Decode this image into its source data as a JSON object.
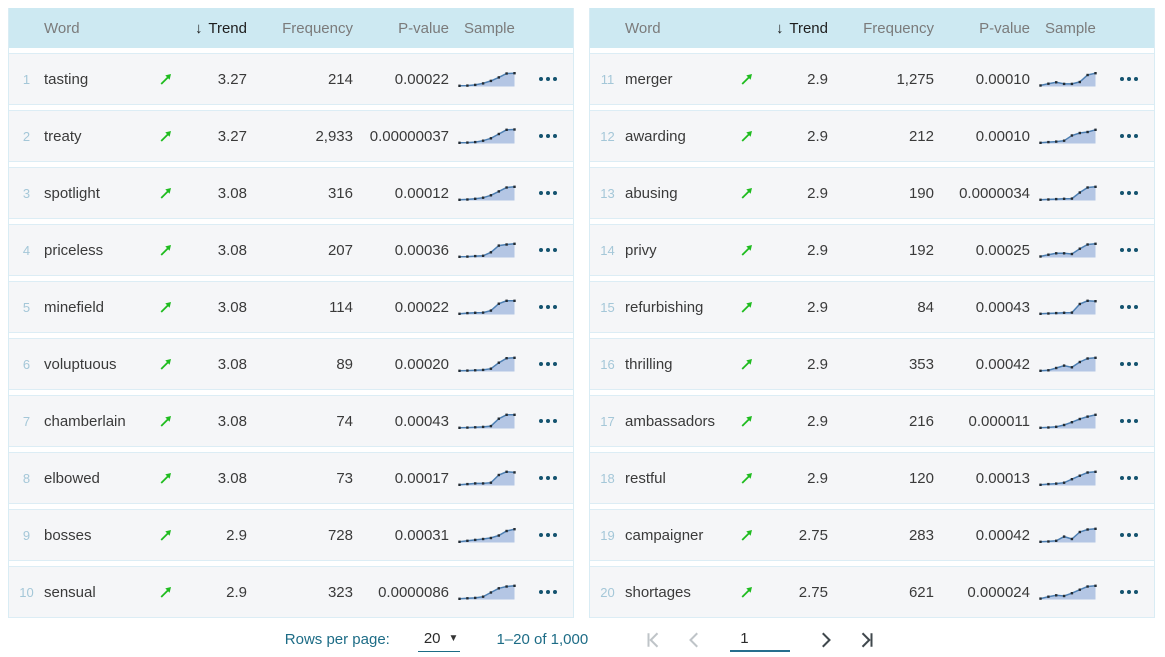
{
  "table": {
    "headers": {
      "word": "Word",
      "trend": "Trend",
      "frequency": "Frequency",
      "pvalue": "P-value",
      "sample": "Sample"
    },
    "sort": {
      "column": "Trend",
      "direction": "descending",
      "icon": "↓"
    },
    "left_rows": [
      {
        "num": "1",
        "word": "tasting",
        "trend": "3.27",
        "frequency": "214",
        "pvalue": "0.00022",
        "spark": [
          0.4,
          0.5,
          0.9,
          1.8,
          3.2,
          5.2,
          7.4,
          7.6
        ]
      },
      {
        "num": "2",
        "word": "treaty",
        "trend": "3.27",
        "frequency": "2,933",
        "pvalue": "0.00000037",
        "spark": [
          0.4,
          0.5,
          0.8,
          1.6,
          3.0,
          5.4,
          7.8,
          8.0
        ]
      },
      {
        "num": "3",
        "word": "spotlight",
        "trend": "3.08",
        "frequency": "316",
        "pvalue": "0.00012",
        "spark": [
          0.4,
          0.6,
          1.0,
          1.6,
          3.0,
          5.2,
          7.4,
          7.8
        ]
      },
      {
        "num": "4",
        "word": "priceless",
        "trend": "3.08",
        "frequency": "207",
        "pvalue": "0.00036",
        "spark": [
          0.4,
          0.5,
          0.8,
          1.0,
          3.0,
          6.8,
          7.4,
          7.8
        ]
      },
      {
        "num": "5",
        "word": "minefield",
        "trend": "3.08",
        "frequency": "114",
        "pvalue": "0.00022",
        "spark": [
          0.4,
          0.8,
          1.0,
          1.1,
          2.2,
          6.2,
          7.8,
          7.8
        ]
      },
      {
        "num": "6",
        "word": "voluptuous",
        "trend": "3.08",
        "frequency": "89",
        "pvalue": "0.00020",
        "spark": [
          0.4,
          0.5,
          0.7,
          0.9,
          1.6,
          5.0,
          7.6,
          7.8
        ]
      },
      {
        "num": "7",
        "word": "chamberlain",
        "trend": "3.08",
        "frequency": "74",
        "pvalue": "0.00043",
        "spark": [
          0.4,
          0.5,
          0.7,
          0.9,
          1.4,
          5.6,
          7.8,
          7.8
        ]
      },
      {
        "num": "8",
        "word": "elbowed",
        "trend": "3.08",
        "frequency": "73",
        "pvalue": "0.00017",
        "spark": [
          0.4,
          0.8,
          1.2,
          1.2,
          1.6,
          6.0,
          7.8,
          7.5
        ]
      },
      {
        "num": "9",
        "word": "bosses",
        "trend": "2.9",
        "frequency": "728",
        "pvalue": "0.00031",
        "spark": [
          0.4,
          1.0,
          1.5,
          2.0,
          2.6,
          4.0,
          6.6,
          7.6
        ]
      },
      {
        "num": "10",
        "word": "sensual",
        "trend": "2.9",
        "frequency": "323",
        "pvalue": "0.0000086",
        "spark": [
          0.4,
          0.7,
          0.9,
          1.6,
          4.0,
          6.4,
          7.4,
          7.8
        ]
      }
    ],
    "right_rows": [
      {
        "num": "11",
        "word": "merger",
        "trend": "2.9",
        "frequency": "1,275",
        "pvalue": "0.00010",
        "spark": [
          0.6,
          1.6,
          2.4,
          1.5,
          1.5,
          2.6,
          6.6,
          7.6
        ]
      },
      {
        "num": "12",
        "word": "awarding",
        "trend": "2.9",
        "frequency": "212",
        "pvalue": "0.00010",
        "spark": [
          0.4,
          0.8,
          1.1,
          1.6,
          4.6,
          6.0,
          6.6,
          7.8
        ]
      },
      {
        "num": "13",
        "word": "abusing",
        "trend": "2.9",
        "frequency": "190",
        "pvalue": "0.0000034",
        "spark": [
          0.4,
          0.6,
          0.8,
          1.0,
          1.1,
          4.6,
          7.4,
          7.8
        ]
      },
      {
        "num": "14",
        "word": "privy",
        "trend": "2.9",
        "frequency": "192",
        "pvalue": "0.00025",
        "spark": [
          0.6,
          1.6,
          2.4,
          2.4,
          2.0,
          5.0,
          7.4,
          7.8
        ]
      },
      {
        "num": "15",
        "word": "refurbishing",
        "trend": "2.9",
        "frequency": "84",
        "pvalue": "0.00043",
        "spark": [
          0.4,
          0.6,
          0.8,
          1.0,
          1.1,
          6.0,
          7.8,
          7.6
        ]
      },
      {
        "num": "16",
        "word": "thrilling",
        "trend": "2.9",
        "frequency": "353",
        "pvalue": "0.00042",
        "spark": [
          0.4,
          0.7,
          2.0,
          3.4,
          2.4,
          5.4,
          7.4,
          7.8
        ]
      },
      {
        "num": "17",
        "word": "ambassadors",
        "trend": "2.9",
        "frequency": "216",
        "pvalue": "0.000011",
        "spark": [
          0.4,
          0.6,
          1.0,
          2.0,
          3.6,
          5.4,
          6.8,
          7.8
        ]
      },
      {
        "num": "18",
        "word": "restful",
        "trend": "2.9",
        "frequency": "120",
        "pvalue": "0.00013",
        "spark": [
          0.4,
          0.8,
          1.1,
          1.6,
          3.6,
          5.6,
          7.4,
          7.8
        ]
      },
      {
        "num": "19",
        "word": "campaigner",
        "trend": "2.75",
        "frequency": "283",
        "pvalue": "0.00042",
        "spark": [
          0.4,
          0.6,
          1.0,
          3.4,
          2.0,
          6.0,
          7.4,
          7.8
        ]
      },
      {
        "num": "20",
        "word": "shortages",
        "trend": "2.75",
        "frequency": "621",
        "pvalue": "0.000024",
        "spark": [
          0.5,
          1.6,
          2.4,
          2.0,
          3.6,
          5.6,
          7.4,
          7.8
        ]
      }
    ]
  },
  "footer": {
    "rows_per_page_label": "Rows per page:",
    "rows_per_page_value": "20",
    "range_label": "1–20 of 1,000",
    "page_value": "1"
  },
  "colors": {
    "header_bg": "#cde9f2",
    "row_bg": "#f5f6f8",
    "row_border": "#dcedf5",
    "index_text": "#a4c7d8",
    "trend_up_green": "#1fbc1f",
    "spark_line": "#4d7fb2",
    "spark_fill": "#b4c6e4",
    "spark_marker": "#222b33",
    "menu_dots": "#14536f",
    "footer_text": "#1d6c86"
  }
}
